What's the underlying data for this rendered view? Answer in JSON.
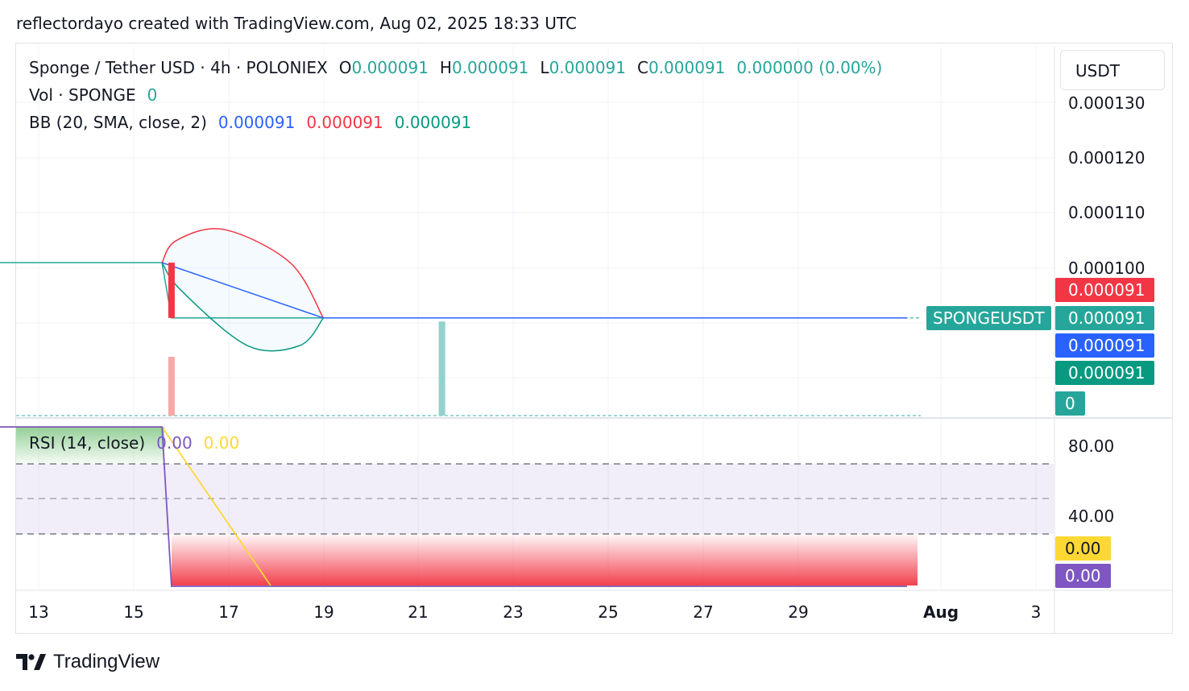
{
  "attribution": "reflectordayo created with TradingView.com, Aug 02, 2025 18:33 UTC",
  "currency_button": "USDT",
  "brand": "TradingView",
  "colors": {
    "up": "#26a69a",
    "down": "#f23645",
    "bb_upper": "#f23645",
    "bb_basis": "#2962ff",
    "bb_lower": "#089981",
    "rsi": "#7e57c2",
    "rsi_ma": "#fdd835",
    "rsi_band": "#ede9f7"
  },
  "legend": {
    "symbol": "Sponge / Tether USD · 4h · POLONIEX",
    "o_label": "O",
    "o_value": "0.000091",
    "h_label": "H",
    "h_value": "0.000091",
    "l_label": "L",
    "l_value": "0.000091",
    "c_label": "C",
    "c_value": "0.000091",
    "change": "0.000000 (0.00%)",
    "vol_label": "Vol · SPONGE",
    "vol_value": "0",
    "bb_label": "BB (20, SMA, close, 2)",
    "bb_basis": "0.000091",
    "bb_upper": "0.000091",
    "bb_lower": "0.000091"
  },
  "rsi_legend": {
    "label": "RSI (14, close)",
    "rsi_value": "0.00",
    "ma_value": "0.00"
  },
  "price_tags": {
    "symbol_tag": "SPONGEUSDT",
    "bb_upper": "0.000091",
    "last": "0.000091",
    "bb_basis": "0.000091",
    "bb_lower": "0.000091",
    "volume": "0",
    "rsi_ma": "0.00",
    "rsi": "0.00"
  },
  "chart_data": {
    "type": "candlestick",
    "symbol": "SPONGEUSDT",
    "exchange": "POLONIEX",
    "interval": "4h",
    "x_ticks": [
      "13",
      "15",
      "17",
      "19",
      "21",
      "23",
      "25",
      "27",
      "29",
      "Aug",
      "3"
    ],
    "y_ticks": [
      "0.000130",
      "0.000120",
      "0.000110",
      "0.000100"
    ],
    "y_range": [
      8.2e-05,
      0.000131
    ],
    "ohlc_last": {
      "open": 9.1e-05,
      "high": 9.1e-05,
      "low": 9.1e-05,
      "close": 9.1e-05
    },
    "price_series": [
      {
        "date": "Jul 12",
        "value": 0.000101
      },
      {
        "date": "Jul 15.6",
        "value": 0.000101
      },
      {
        "date": "Jul 15.8",
        "value": 9.1e-05
      },
      {
        "date": "Jul 31.3",
        "value": 9.1e-05
      }
    ],
    "candles": [
      {
        "date": "Jul 15.8",
        "open": 0.000101,
        "high": 0.000101,
        "low": 9.1e-05,
        "close": 9.1e-05
      }
    ],
    "bollinger_bands": {
      "upper": [
        {
          "date": "Jul 15.6",
          "value": 0.000101
        },
        {
          "date": "Jul 15.9",
          "value": 0.000105
        },
        {
          "date": "Jul 16.9",
          "value": 0.000107
        },
        {
          "date": "Jul 18.3",
          "value": 0.000101
        },
        {
          "date": "Jul 19",
          "value": 9.1e-05
        }
      ],
      "basis": [
        {
          "date": "Jul 15.6",
          "value": 0.000101
        },
        {
          "date": "Jul 19",
          "value": 9.1e-05
        },
        {
          "date": "Jul 31.3",
          "value": 9.1e-05
        }
      ],
      "lower": [
        {
          "date": "Jul 15.6",
          "value": 0.000101
        },
        {
          "date": "Jul 16",
          "value": 9.6e-05
        },
        {
          "date": "Jul 17.4",
          "value": 8.6e-05
        },
        {
          "date": "Jul 18.5",
          "value": 8.6e-05
        },
        {
          "date": "Jul 19",
          "value": 9.1e-05
        }
      ]
    },
    "volume": [
      {
        "date": "Jul 15.8",
        "value": 1,
        "direction": "down"
      },
      {
        "date": "Jul 21.5",
        "value": 1.6,
        "direction": "up"
      }
    ],
    "rsi": {
      "y_ticks": [
        "80.00",
        "40.00"
      ],
      "y_range": [
        0,
        100
      ],
      "bands": [
        70,
        50,
        30
      ],
      "rsi_series": [
        {
          "date": "Jul 12",
          "value": 91
        },
        {
          "date": "Jul 15.6",
          "value": 91
        },
        {
          "date": "Jul 15.8",
          "value": 0
        },
        {
          "date": "Jul 31.3",
          "value": 0
        }
      ],
      "ma_series": [
        {
          "date": "Jul 12",
          "value": 91
        },
        {
          "date": "Jul 15.6",
          "value": 91
        },
        {
          "date": "Jul 17.9",
          "value": 0
        },
        {
          "date": "Jul 31.3",
          "value": 0
        }
      ]
    }
  }
}
